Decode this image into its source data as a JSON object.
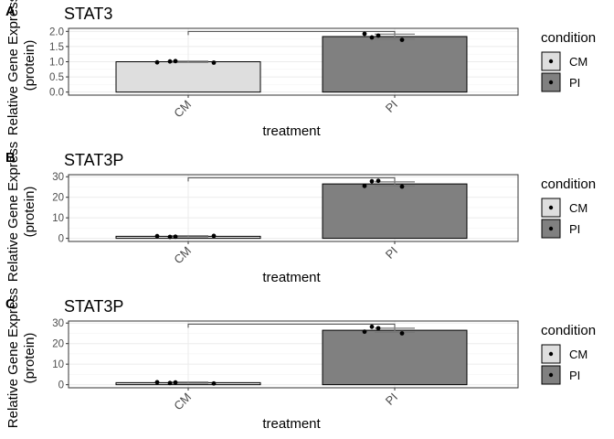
{
  "legend": {
    "title": "condition",
    "items": [
      {
        "label": "CM",
        "fill": "#dedede"
      },
      {
        "label": "PI",
        "fill": "#808080"
      }
    ]
  },
  "colors": {
    "CM": "#dedede",
    "PI": "#808080",
    "grid": "#ebebeb",
    "border": "#333333"
  },
  "chart_data": [
    {
      "type": "bar",
      "panel": "A",
      "title": "STAT3",
      "xlabel": "treatment",
      "ylabel": "Relative Gene Express\n(protein)",
      "categories": [
        "CM",
        "PI"
      ],
      "values": [
        1.0,
        1.83
      ],
      "errors": [
        0.02,
        0.08
      ],
      "ylim": [
        -0.1,
        2.1
      ],
      "yticks": [
        0.0,
        0.5,
        1.0,
        1.5,
        2.0
      ],
      "ytick_labels": [
        "0.0",
        "0.5",
        "1.0",
        "1.5",
        "2.0"
      ],
      "points": [
        {
          "cat": "CM",
          "y": [
            0.98,
            1.01,
            1.02,
            0.97
          ]
        },
        {
          "cat": "PI",
          "y": [
            1.92,
            1.8,
            1.86,
            1.72
          ]
        }
      ],
      "bracket_y": 2.0,
      "grid": true,
      "legend_position": "right"
    },
    {
      "type": "bar",
      "panel": "B",
      "title": "STAT3P",
      "xlabel": "treatment",
      "ylabel": "Relative Gene Express\n(protein)",
      "categories": [
        "CM",
        "PI"
      ],
      "values": [
        1.0,
        26.5
      ],
      "errors": [
        0.3,
        1.0
      ],
      "ylim": [
        -1.5,
        31
      ],
      "yticks": [
        0,
        10,
        20,
        30
      ],
      "ytick_labels": [
        "0",
        "10",
        "20",
        "30"
      ],
      "points": [
        {
          "cat": "CM",
          "y": [
            1.1,
            0.7,
            0.8,
            1.2
          ]
        },
        {
          "cat": "PI",
          "y": [
            25.5,
            27.8,
            28.0,
            25.2
          ]
        }
      ],
      "bracket_y": 29.5,
      "grid": true,
      "legend_position": "right"
    },
    {
      "type": "bar",
      "panel": "C",
      "title": "STAT3P",
      "xlabel": "treatment",
      "ylabel": "Relative Gene Express\n(protein)",
      "categories": [
        "CM",
        "PI"
      ],
      "values": [
        1.0,
        26.5
      ],
      "errors": [
        0.3,
        1.0
      ],
      "ylim": [
        -1.5,
        31
      ],
      "yticks": [
        0,
        10,
        20,
        30
      ],
      "ytick_labels": [
        "0",
        "10",
        "20",
        "30"
      ],
      "points": [
        {
          "cat": "CM",
          "y": [
            1.2,
            0.8,
            1.1,
            0.6
          ]
        },
        {
          "cat": "PI",
          "y": [
            25.8,
            28.2,
            27.5,
            25.0
          ]
        }
      ],
      "bracket_y": 29.5,
      "grid": true,
      "legend_position": "right"
    }
  ]
}
